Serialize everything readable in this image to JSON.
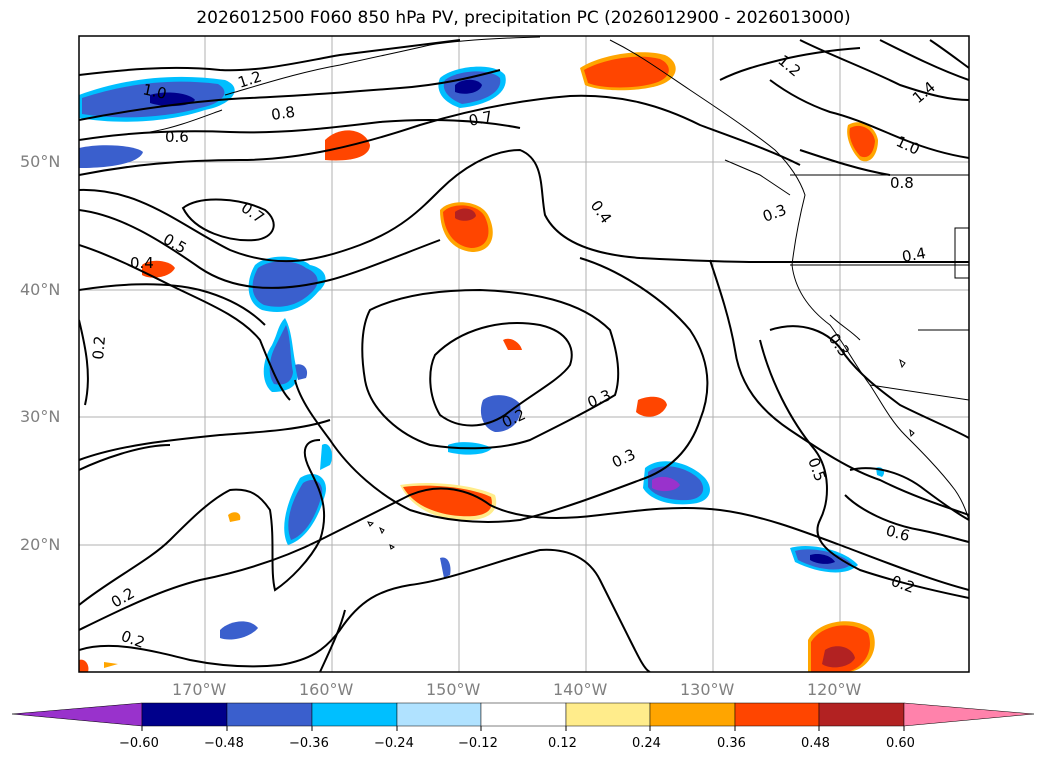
{
  "title": "2026012500 F060 850 hPa PV, precipitation PC (2026012900 - 2026013000)",
  "lat_labels": [
    "50°N",
    "40°N",
    "30°N",
    "20°N"
  ],
  "lon_labels": [
    "170°W",
    "160°W",
    "150°W",
    "140°W",
    "130°W",
    "120°W"
  ],
  "colorbar": {
    "labels": [
      "−0.60",
      "−0.48",
      "−0.36",
      "−0.24",
      "−0.12",
      "0.12",
      "0.24",
      "0.36",
      "0.48",
      "0.60"
    ],
    "colors": [
      "#9932cc",
      "#00008b",
      "#3a5fcd",
      "#00bfff",
      "#b0e2ff",
      "#ffffff",
      "#ffec8b",
      "#ffa500",
      "#ff4500",
      "#b22222",
      "#ff82ab"
    ]
  },
  "contour_labels": [
    "1.0",
    "1.2",
    "0.8",
    "0.6",
    "0.7",
    "0.7",
    "0.5",
    "0.4",
    "0.2",
    "0.4",
    "0.3",
    "0.2",
    "0.3",
    "0.2",
    "0.2",
    "1.2",
    "1.4",
    "1.0",
    "0.8",
    "0.3",
    "0.4",
    "0.3",
    "0.5",
    "0.6",
    "0.2"
  ]
}
